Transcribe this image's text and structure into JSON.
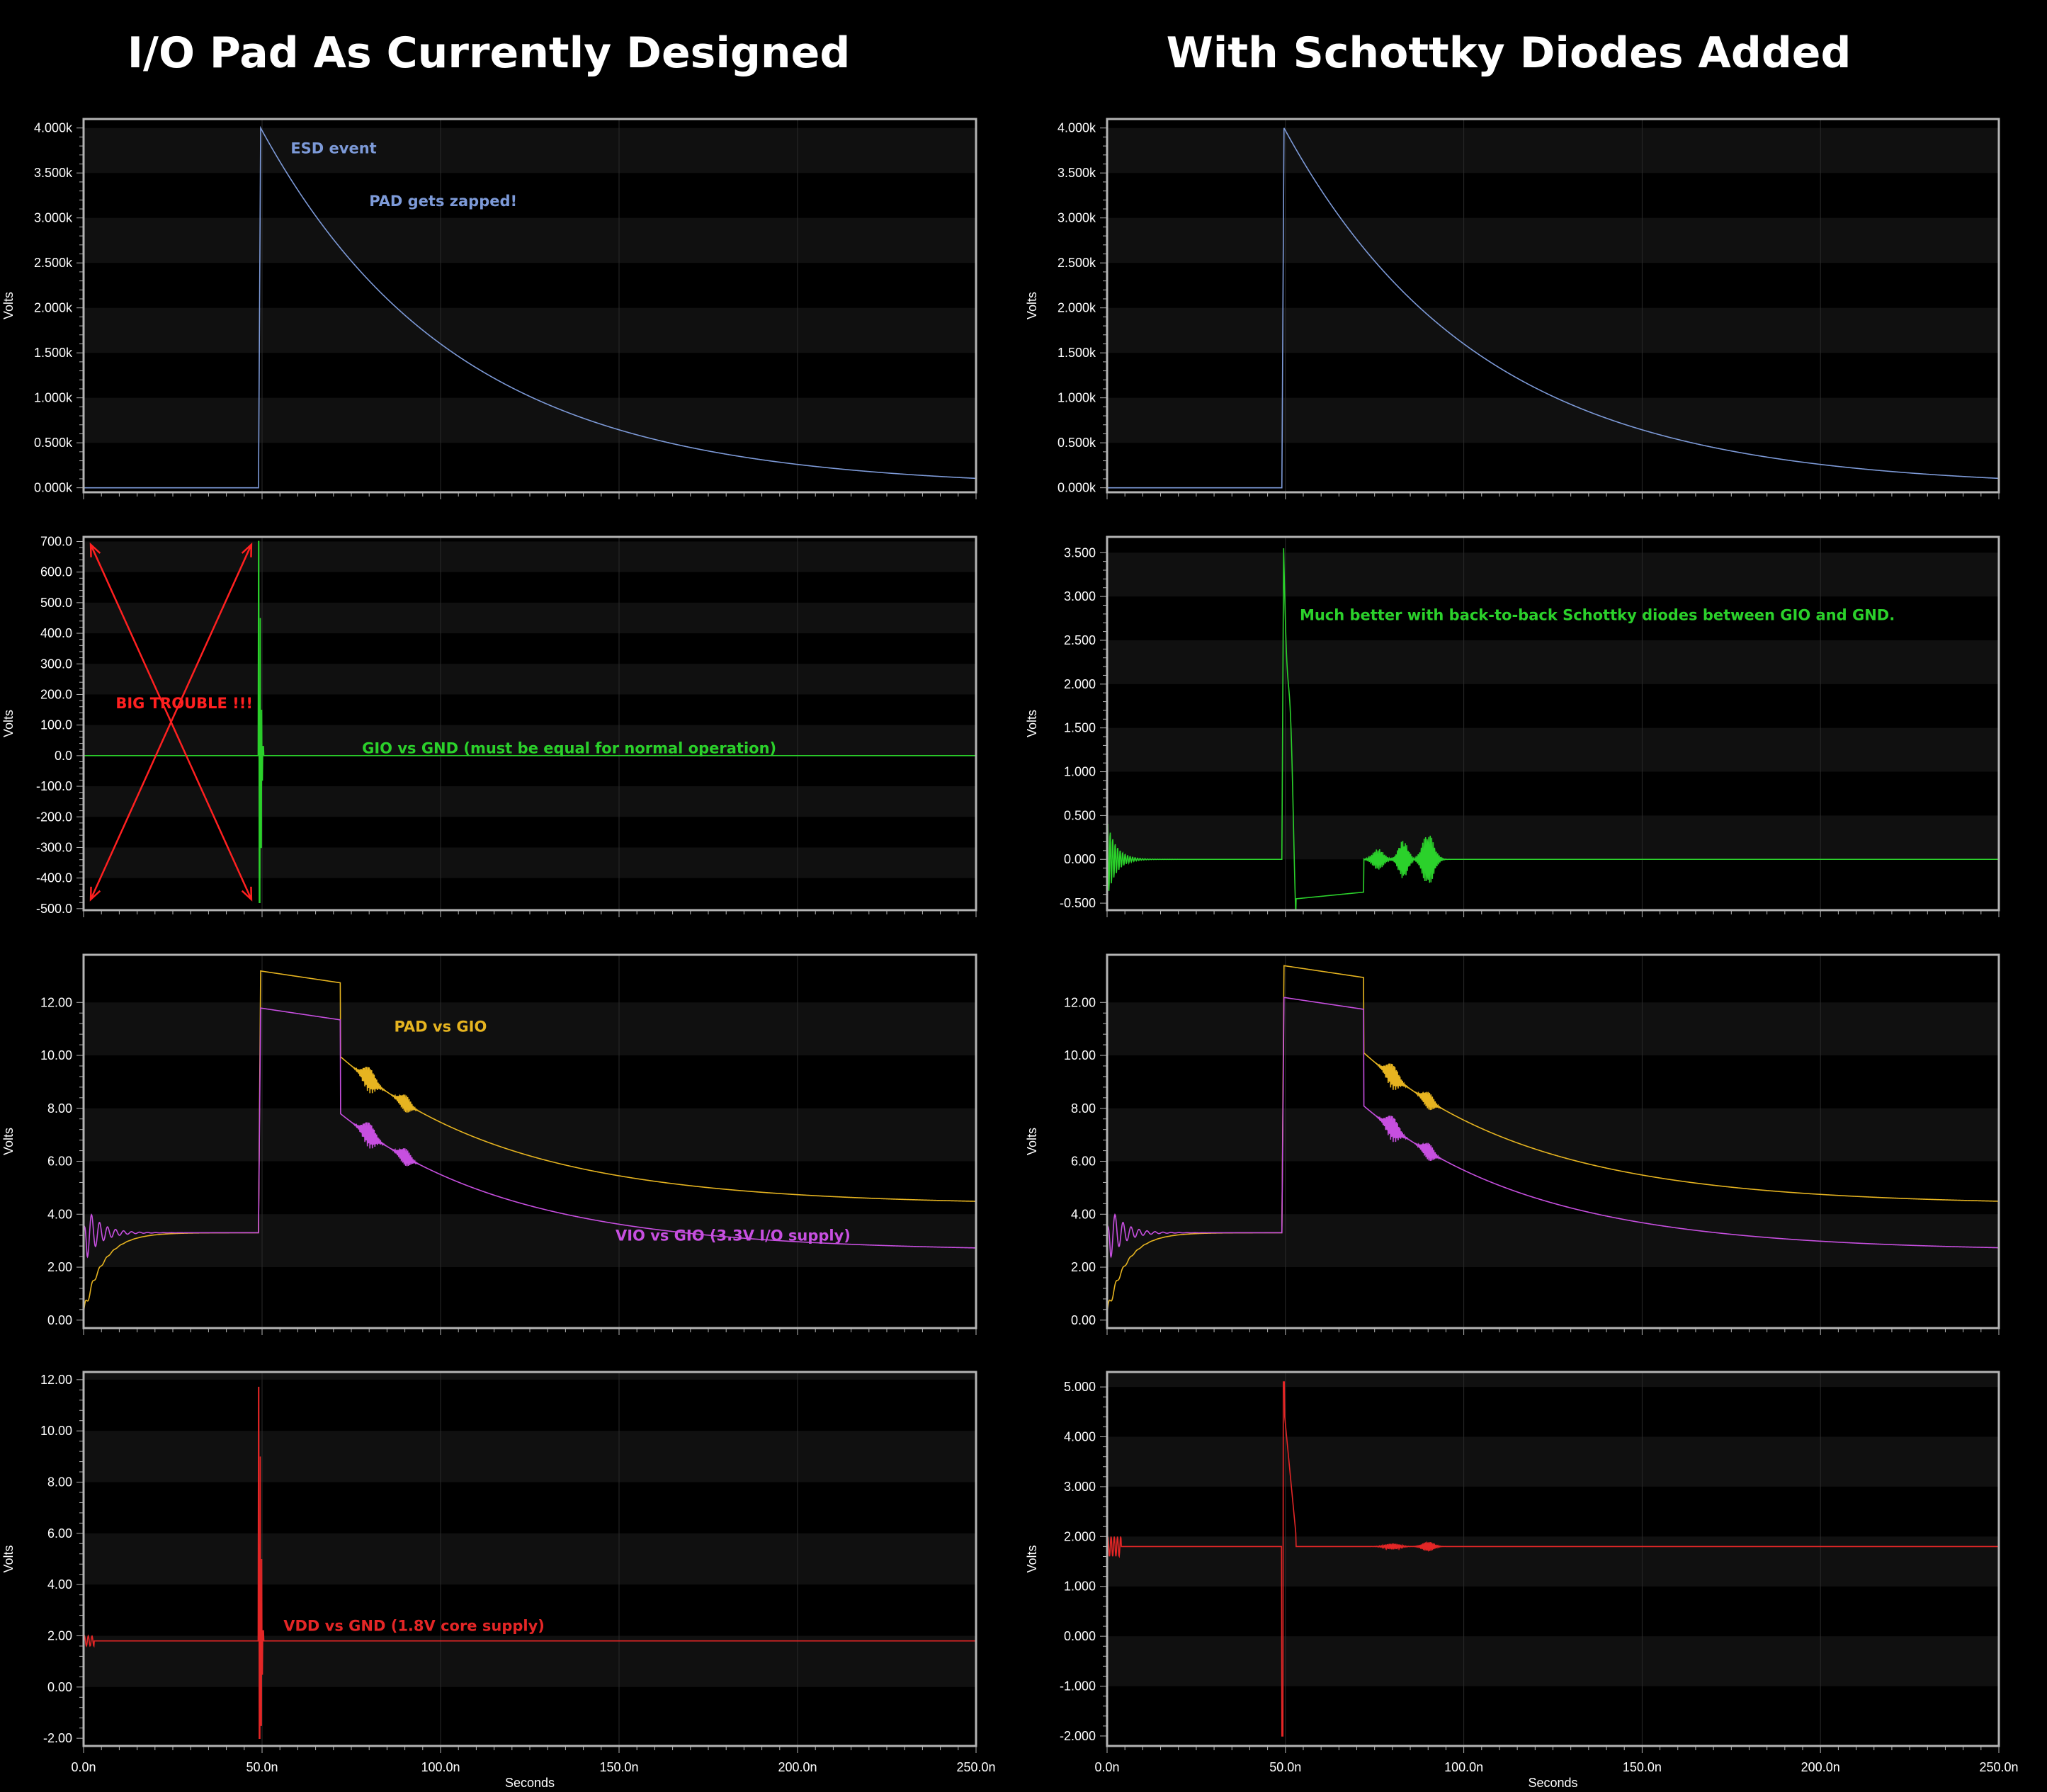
{
  "titles": {
    "left": "I/O Pad As Currently Designed",
    "right": "With Schottky Diodes Added"
  },
  "colors": {
    "background": "#000000",
    "frame": "#b4b4b4",
    "band": "#101010",
    "grid": "#2a2a2a",
    "pad": "#7d9ad8",
    "gio": "#2bd12b",
    "pad_vs_gio": "#e6b420",
    "vio_vs_gio": "#c74fe0",
    "vdd": "#e42626",
    "annot_red": "#ff2020"
  },
  "chart_data": [
    {
      "id": "L1",
      "type": "line",
      "column": "left",
      "ylabel": "Volts",
      "xlabel": "",
      "xlim": [
        0,
        250
      ],
      "ylim": [
        -0.05,
        4.1
      ],
      "yticks": [
        0,
        0.5,
        1,
        1.5,
        2,
        2.5,
        3,
        3.5,
        4
      ],
      "ytick_labels": [
        "0.000k",
        "0.500k",
        "1.000k",
        "1.500k",
        "2.000k",
        "2.500k",
        "3.000k",
        "3.500k",
        "4.000k"
      ],
      "xticks": [
        0,
        50,
        100,
        150,
        200,
        250
      ],
      "xtick_labels": [],
      "series": [
        {
          "color_key": "pad",
          "kind": "esd",
          "params": {
            "t0": 49,
            "peak": 4.0,
            "tau": 55
          },
          "x": [
            0,
            49,
            50,
            60,
            75,
            100,
            150,
            200,
            250
          ],
          "y": [
            0,
            0,
            3.98,
            3.3,
            2.5,
            1.58,
            0.63,
            0.25,
            0.06
          ]
        }
      ],
      "annotations": [
        {
          "text": "ESD event",
          "color_key": "pad",
          "x": 58,
          "y": 3.72
        },
        {
          "text": "PAD gets zapped!",
          "color_key": "pad",
          "x": 80,
          "y": 3.13
        }
      ]
    },
    {
      "id": "L2",
      "type": "line",
      "column": "left",
      "ylabel": "Volts",
      "xlabel": "",
      "xlim": [
        0,
        250
      ],
      "ylim": [
        -505,
        715
      ],
      "yticks": [
        -500,
        -400,
        -300,
        -200,
        -100,
        0,
        100,
        200,
        300,
        400,
        500,
        600,
        700
      ],
      "ytick_labels": [
        "-500.0",
        "-400.0",
        "-300.0",
        "-200.0",
        "-100.0",
        "0.0",
        "100.0",
        "200.0",
        "300.0",
        "400.0",
        "500.0",
        "600.0",
        "700.0"
      ],
      "xticks": [
        0,
        50,
        100,
        150,
        200,
        250
      ],
      "xtick_labels": [],
      "series": [
        {
          "color_key": "gio",
          "kind": "spike",
          "params": {
            "t0": 49,
            "amps": [
              700,
              -480,
              450,
              -300,
              150,
              -80,
              30,
              0
            ]
          },
          "x": [
            0,
            49,
            49.2,
            49.4,
            49.6,
            49.8,
            50,
            250
          ],
          "y": [
            0,
            0,
            700,
            -480,
            450,
            -300,
            0,
            0
          ]
        }
      ],
      "annotations": [
        {
          "text": "GIO vs GND (must be equal for normal operation)",
          "color_key": "gio",
          "x": 78,
          "y": 8
        },
        {
          "text": "BIG TROUBLE !!!",
          "color_key": "annot_red",
          "x": 9,
          "y": 155
        }
      ],
      "arrows": [
        {
          "from": [
            2,
            690
          ],
          "to": [
            47,
            -470
          ],
          "color_key": "annot_red"
        },
        {
          "from": [
            47,
            690
          ],
          "to": [
            2,
            -470
          ],
          "color_key": "annot_red"
        }
      ]
    },
    {
      "id": "L3",
      "type": "line",
      "column": "left",
      "ylabel": "Volts",
      "xlabel": "",
      "xlim": [
        0,
        250
      ],
      "ylim": [
        -0.3,
        13.8
      ],
      "yticks": [
        0,
        2,
        4,
        6,
        8,
        10,
        12
      ],
      "ytick_labels": [
        "0.00",
        "2.00",
        "4.00",
        "6.00",
        "8.00",
        "10.00",
        "12.00"
      ],
      "xticks": [
        0,
        50,
        100,
        150,
        200,
        250
      ],
      "xtick_labels": [],
      "series": [
        {
          "color_key": "pad_vs_gio",
          "kind": "pad_gio",
          "params": {
            "t0": 49,
            "top": 13.2,
            "step_t": 72,
            "tail": 4.35
          },
          "x": [
            0,
            5,
            20,
            49,
            50,
            72,
            80,
            100,
            150,
            200,
            250
          ],
          "y": [
            0.2,
            2.0,
            3.1,
            3.3,
            13.2,
            12.4,
            11.2,
            7.8,
            5.3,
            4.6,
            4.35
          ]
        },
        {
          "color_key": "vio_vs_gio",
          "kind": "vio_gio",
          "params": {
            "t0": 49,
            "top": 11.8,
            "step_t": 72,
            "tail": 3.5
          },
          "x": [
            0,
            2,
            10,
            49,
            50,
            72,
            80,
            100,
            150,
            200,
            250
          ],
          "y": [
            0.6,
            4.0,
            3.3,
            3.3,
            11.8,
            11.0,
            9.6,
            6.4,
            4.3,
            3.7,
            3.5
          ]
        }
      ],
      "annotations": [
        {
          "text": "PAD vs GIO",
          "color_key": "pad_vs_gio",
          "x": 87,
          "y": 10.9
        },
        {
          "text": "VIO vs GIO (3.3V I/O supply)",
          "color_key": "vio_vs_gio",
          "x": 149,
          "y": 3.0
        }
      ]
    },
    {
      "id": "L4",
      "type": "line",
      "column": "left",
      "ylabel": "Volts",
      "xlabel": "Seconds",
      "xlim": [
        0,
        250
      ],
      "ylim": [
        -2.3,
        12.3
      ],
      "yticks": [
        -2,
        0,
        2,
        4,
        6,
        8,
        10,
        12
      ],
      "ytick_labels": [
        "-2.00",
        "0.00",
        "2.00",
        "4.00",
        "6.00",
        "8.00",
        "10.00",
        "12.00"
      ],
      "xticks": [
        0,
        50,
        100,
        150,
        200,
        250
      ],
      "xtick_labels": [
        "0.0n",
        "50.0n",
        "100.0n",
        "150.0n",
        "200.0n",
        "250.0n"
      ],
      "series": [
        {
          "color_key": "vdd",
          "kind": "vdd",
          "params": {
            "base": 1.8,
            "t0": 49,
            "amps": [
              11.7,
              -2.0,
              9,
              -1.5,
              5,
              0.5,
              2.2,
              1.8
            ]
          },
          "x": [
            0,
            49,
            49.2,
            49.4,
            50,
            250
          ],
          "y": [
            1.8,
            1.8,
            11.7,
            -2.0,
            1.8,
            1.8
          ]
        }
      ],
      "annotations": [
        {
          "text": "VDD vs GND (1.8V core supply)",
          "color_key": "vdd",
          "x": 56,
          "y": 2.2
        }
      ]
    },
    {
      "id": "R1",
      "type": "line",
      "column": "right",
      "ylabel": "Volts",
      "xlabel": "",
      "xlim": [
        0,
        250
      ],
      "ylim": [
        -0.05,
        4.1
      ],
      "yticks": [
        0,
        0.5,
        1,
        1.5,
        2,
        2.5,
        3,
        3.5,
        4
      ],
      "ytick_labels": [
        "0.000k",
        "0.500k",
        "1.000k",
        "1.500k",
        "2.000k",
        "2.500k",
        "3.000k",
        "3.500k",
        "4.000k"
      ],
      "xticks": [
        0,
        50,
        100,
        150,
        200,
        250
      ],
      "xtick_labels": [],
      "series": [
        {
          "color_key": "pad",
          "kind": "esd",
          "params": {
            "t0": 49,
            "peak": 4.0,
            "tau": 55
          },
          "x": [
            0,
            49,
            50,
            60,
            75,
            100,
            150,
            200,
            250
          ],
          "y": [
            0,
            0,
            3.98,
            3.3,
            2.5,
            1.58,
            0.63,
            0.25,
            0.06
          ]
        }
      ],
      "annotations": []
    },
    {
      "id": "R2",
      "type": "line",
      "column": "right",
      "ylabel": "Volts",
      "xlabel": "",
      "xlim": [
        0,
        250
      ],
      "ylim": [
        -0.58,
        3.68
      ],
      "yticks": [
        -0.5,
        0,
        0.5,
        1,
        1.5,
        2,
        2.5,
        3,
        3.5
      ],
      "ytick_labels": [
        "-0.500",
        "0.000",
        "0.500",
        "1.000",
        "1.500",
        "2.000",
        "2.500",
        "3.000",
        "3.500"
      ],
      "xticks": [
        0,
        50,
        100,
        150,
        200,
        250
      ],
      "xtick_labels": [],
      "series": [
        {
          "color_key": "gio",
          "kind": "gio_schottky",
          "params": {
            "t0": 49
          },
          "x": [
            0,
            49,
            49.5,
            52,
            53,
            60,
            70,
            72,
            80,
            90,
            95,
            250
          ],
          "y": [
            0,
            0,
            3.55,
            1.5,
            -0.45,
            -0.35,
            -0.25,
            0.08,
            0.05,
            0.2,
            0,
            0
          ]
        }
      ],
      "annotations": [
        {
          "text": "Much better with back-to-back Schottky diodes between GIO and GND.",
          "color_key": "gio",
          "x": 54,
          "y": 2.73
        }
      ]
    },
    {
      "id": "R3",
      "type": "line",
      "column": "right",
      "ylabel": "Volts",
      "xlabel": "",
      "xlim": [
        0,
        250
      ],
      "ylim": [
        -0.3,
        13.8
      ],
      "yticks": [
        0,
        2,
        4,
        6,
        8,
        10,
        12
      ],
      "ytick_labels": [
        "0.00",
        "2.00",
        "4.00",
        "6.00",
        "8.00",
        "10.00",
        "12.00"
      ],
      "xticks": [
        0,
        50,
        100,
        150,
        200,
        250
      ],
      "xtick_labels": [],
      "series": [
        {
          "color_key": "pad_vs_gio",
          "kind": "pad_gio",
          "params": {
            "t0": 49,
            "top": 13.4,
            "step_t": 72,
            "tail": 4.35
          },
          "x": [
            0,
            5,
            20,
            49,
            50,
            72,
            80,
            100,
            150,
            200,
            250
          ],
          "y": [
            0.2,
            2.0,
            3.1,
            3.3,
            13.4,
            12.5,
            11.2,
            7.8,
            5.3,
            4.6,
            4.35
          ]
        },
        {
          "color_key": "vio_vs_gio",
          "kind": "vio_gio",
          "params": {
            "t0": 49,
            "top": 12.2,
            "step_t": 72,
            "tail": 3.5
          },
          "x": [
            0,
            2,
            10,
            49,
            50,
            72,
            80,
            100,
            150,
            200,
            250
          ],
          "y": [
            0.6,
            4.0,
            3.3,
            3.3,
            12.2,
            11.0,
            9.6,
            6.4,
            4.3,
            3.7,
            3.5
          ]
        }
      ],
      "annotations": []
    },
    {
      "id": "R4",
      "type": "line",
      "column": "right",
      "ylabel": "Volts",
      "xlabel": "Seconds",
      "xlim": [
        0,
        250
      ],
      "ylim": [
        -2.2,
        5.3
      ],
      "yticks": [
        -2,
        -1,
        0,
        1,
        2,
        3,
        4,
        5
      ],
      "ytick_labels": [
        "-2.000",
        "-1.000",
        "0.000",
        "1.000",
        "2.000",
        "3.000",
        "4.000",
        "5.000"
      ],
      "xticks": [
        0,
        50,
        100,
        150,
        200,
        250
      ],
      "xtick_labels": [
        "0.0n",
        "50.0n",
        "100.0n",
        "150.0n",
        "200.0n",
        "250.0n"
      ],
      "series": [
        {
          "color_key": "vdd",
          "kind": "vdd_schottky",
          "params": {
            "base": 1.8,
            "t0": 49
          },
          "x": [
            0,
            49,
            49.5,
            50,
            53,
            54,
            250
          ],
          "y": [
            1.8,
            1.8,
            -2.0,
            5.1,
            2.0,
            1.8,
            1.8
          ]
        }
      ],
      "annotations": []
    }
  ]
}
